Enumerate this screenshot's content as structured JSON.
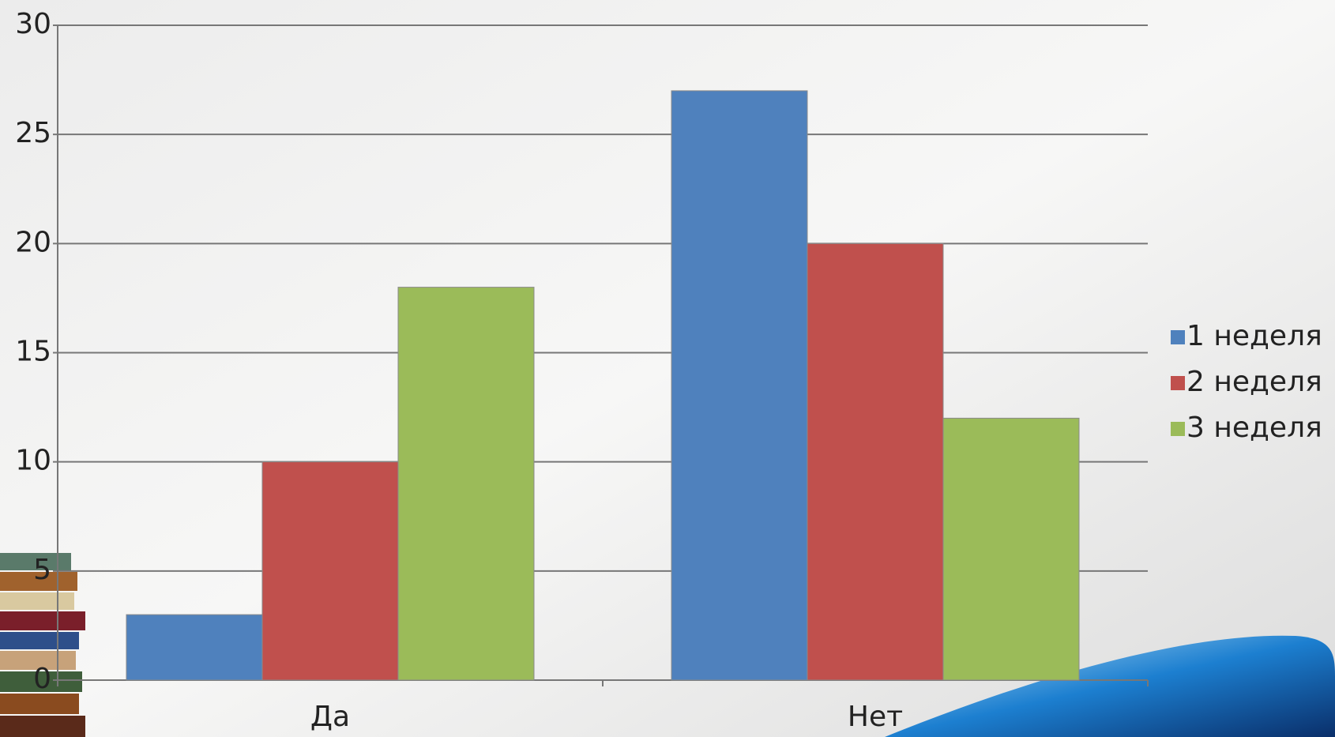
{
  "chart_data": {
    "type": "bar",
    "categories": [
      "Да",
      "Нет"
    ],
    "series": [
      {
        "name": "1 неделя",
        "color": "#4f81bd",
        "values": [
          3,
          27
        ]
      },
      {
        "name": "2 неделя",
        "color": "#c0504d",
        "values": [
          10,
          20
        ]
      },
      {
        "name": "3 неделя",
        "color": "#9bbb59",
        "values": [
          18,
          12
        ]
      }
    ],
    "ylim": [
      0,
      30
    ],
    "yticks": [
      0,
      5,
      10,
      15,
      20,
      25,
      30
    ],
    "grid": true,
    "legend": "right"
  }
}
